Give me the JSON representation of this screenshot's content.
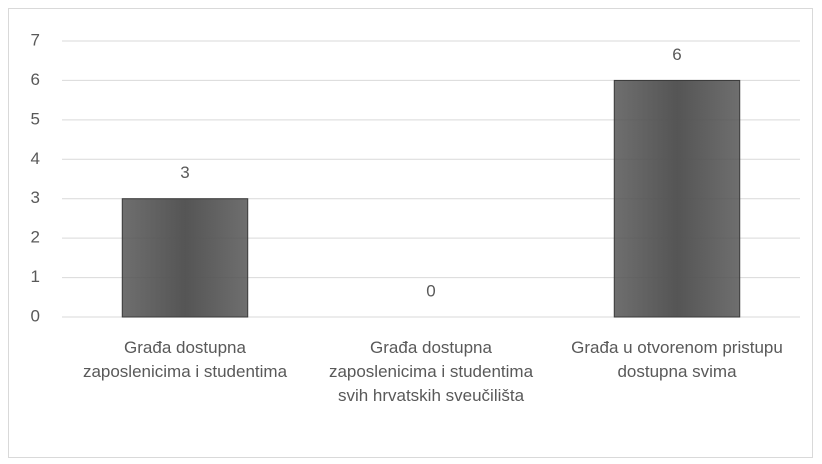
{
  "chart_data": {
    "type": "bar",
    "categories": [
      "Građa dostupna zaposlenicima i studentima",
      "Građa dostupna zaposlenicima i studentima svih hrvatskih sveučilišta",
      "Građa u otvorenom pristupu dostupna svima"
    ],
    "values": [
      3,
      0,
      6
    ],
    "color": "#555555",
    "ylim": [
      0,
      7
    ],
    "yticks": [
      0,
      1,
      2,
      3,
      4,
      5,
      6,
      7
    ],
    "grid": true
  }
}
